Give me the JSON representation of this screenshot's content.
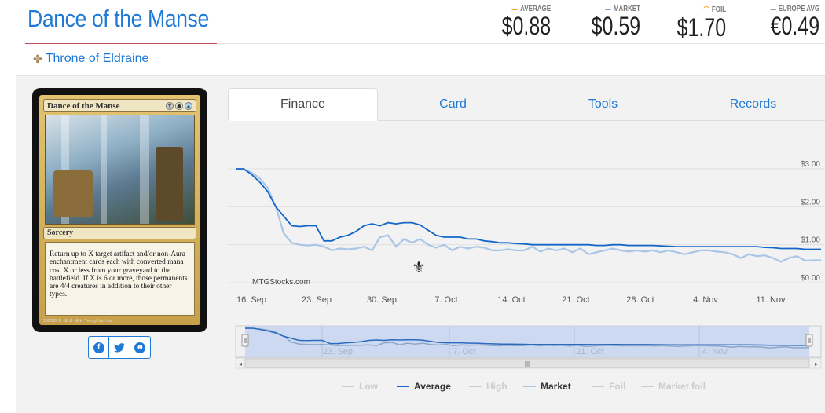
{
  "card": {
    "title": "Dance of the Manse",
    "set": "Throne of Eldraine"
  },
  "prices": {
    "average": {
      "label": "AVERAGE",
      "value": "$0.88",
      "color": "#f5a623"
    },
    "market": {
      "label": "MARKET",
      "value": "$0.59",
      "color": "#6fa0d8"
    },
    "foil": {
      "label": "FOIL",
      "value": "$1.70",
      "color": "#f5a623"
    },
    "europe": {
      "label": "EUROPE AVG",
      "value": "€0.49",
      "color": "#999999"
    }
  },
  "card_image": {
    "name": "Dance of the Manse",
    "type_line": "Sorcery",
    "rules_text": "Return up to X target artifact and/or non-Aura enchantment cards each with converted mana cost X or less from your graveyard to the battlefield. If X is 6 or more, those permanents are 4/4 creatures in addition to their other types.",
    "footer": "186/269 R · ELD · EN · Yeong-Hao Han"
  },
  "share": {
    "icons": [
      "facebook-icon",
      "twitter-icon",
      "reddit-icon"
    ]
  },
  "tabs": [
    {
      "label": "Finance",
      "active": true
    },
    {
      "label": "Card",
      "active": false
    },
    {
      "label": "Tools",
      "active": false
    },
    {
      "label": "Records",
      "active": false
    }
  ],
  "chart": {
    "watermark": "MTGStocks.com",
    "colors": {
      "average": "#1466c8",
      "market": "#a9c6e6",
      "grid": "#e0e0e0",
      "navigator_fill": "#c9d6ef"
    }
  },
  "chart_data": {
    "type": "line",
    "x_ticks": [
      "16. Sep",
      "23. Sep",
      "30. Sep",
      "7. Oct",
      "14. Oct",
      "21. Oct",
      "28. Oct",
      "4. Nov",
      "11. Nov"
    ],
    "y_ticks": [
      "$3.00",
      "$2.00",
      "$1.00",
      "$0.00"
    ],
    "ylim": [
      0,
      3.3
    ],
    "x_start": "2019-09-16",
    "series": [
      {
        "name": "Average",
        "values": [
          3.0,
          3.0,
          2.85,
          2.65,
          2.4,
          2.0,
          1.75,
          1.5,
          1.48,
          1.5,
          1.5,
          1.1,
          1.1,
          1.2,
          1.25,
          1.35,
          1.5,
          1.55,
          1.5,
          1.58,
          1.55,
          1.58,
          1.58,
          1.52,
          1.38,
          1.25,
          1.2,
          1.2,
          1.2,
          1.15,
          1.15,
          1.1,
          1.08,
          1.05,
          1.05,
          1.03,
          1.02,
          1.0,
          1.0,
          1.0,
          1.0,
          1.0,
          1.0,
          1.0,
          1.0,
          0.98,
          0.98,
          1.0,
          1.0,
          0.98,
          0.98,
          0.98,
          0.98,
          0.97,
          0.96,
          0.95,
          0.95,
          0.95,
          0.95,
          0.95,
          0.95,
          0.95,
          0.95,
          0.95,
          0.95,
          0.95,
          0.93,
          0.92,
          0.9,
          0.9,
          0.9,
          0.88,
          0.88,
          0.88
        ]
      },
      {
        "name": "Market",
        "values": [
          3.0,
          2.98,
          2.9,
          2.75,
          2.5,
          2.0,
          1.3,
          1.05,
          1.0,
          0.98,
          1.0,
          0.95,
          0.85,
          0.9,
          0.88,
          0.9,
          0.95,
          0.85,
          1.2,
          1.25,
          0.95,
          1.15,
          1.05,
          1.15,
          1.0,
          0.92,
          1.0,
          0.85,
          0.95,
          0.9,
          0.95,
          0.92,
          0.85,
          0.85,
          0.88,
          0.85,
          0.85,
          0.95,
          0.82,
          0.9,
          0.85,
          0.9,
          0.8,
          0.9,
          0.75,
          0.8,
          0.85,
          0.9,
          0.85,
          0.82,
          0.85,
          0.82,
          0.85,
          0.8,
          0.85,
          0.8,
          0.75,
          0.8,
          0.85,
          0.85,
          0.82,
          0.8,
          0.75,
          0.65,
          0.75,
          0.7,
          0.72,
          0.65,
          0.55,
          0.65,
          0.7,
          0.58,
          0.59,
          0.59
        ]
      }
    ],
    "legend": [
      {
        "name": "Low",
        "active": false
      },
      {
        "name": "Average",
        "active": true
      },
      {
        "name": "High",
        "active": false
      },
      {
        "name": "Market",
        "active": true
      },
      {
        "name": "Foil",
        "active": false
      },
      {
        "name": "Market foil",
        "active": false
      }
    ]
  }
}
